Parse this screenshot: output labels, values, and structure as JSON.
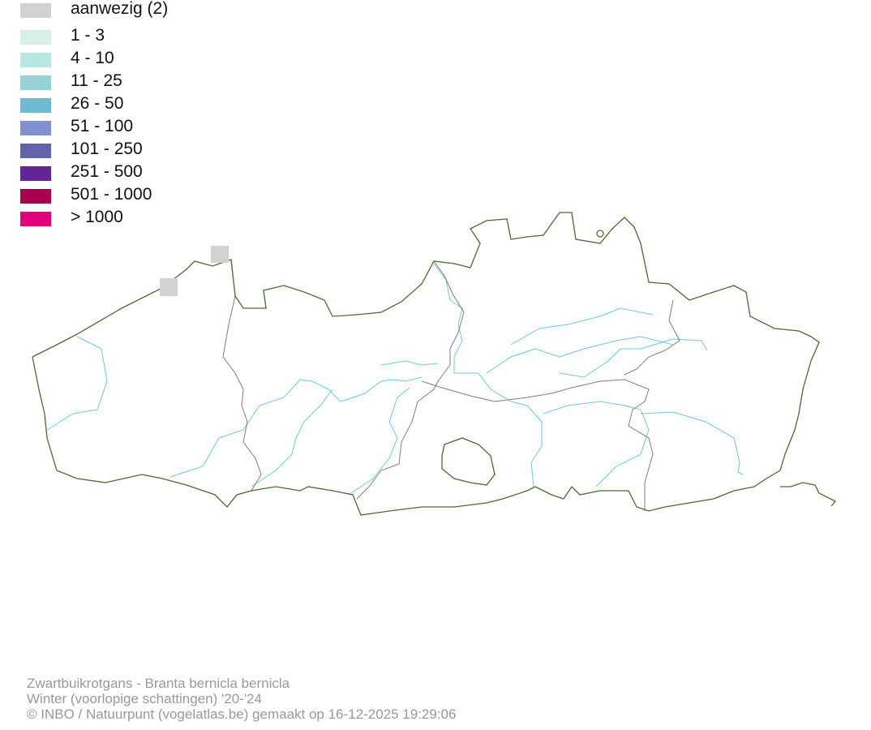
{
  "legend": {
    "items": [
      {
        "label": "aanwezig (2)",
        "color": "#d2d2d2"
      },
      {
        "label": "1 - 3",
        "color": "#d6f0e4"
      },
      {
        "label": "4 - 10",
        "color": "#b4e7e0"
      },
      {
        "label": "11 - 25",
        "color": "#96d2d6"
      },
      {
        "label": "26 - 50",
        "color": "#70b9d2"
      },
      {
        "label": "51 - 100",
        "color": "#8090d2"
      },
      {
        "label": "101 - 250",
        "color": "#6364a8"
      },
      {
        "label": "251 - 500",
        "color": "#622496"
      },
      {
        "label": "501 - 1000",
        "color": "#a8004e"
      },
      {
        "label": "> 1000",
        "color": "#e4007c"
      }
    ]
  },
  "map": {
    "outline_color": "#4a6a34",
    "province_border_color": "#8a7a74",
    "river_color": "#6cc8dc",
    "presence_cells": 2
  },
  "footer": {
    "line1": "Zwartbuikrotgans - Branta bernicla bernicla",
    "line2": "Winter (voorlopige schattingen) '20-'24",
    "line3": "© INBO / Natuurpunt (vogelatlas.be) gemaakt op 16-12-2025 19:29:06"
  }
}
